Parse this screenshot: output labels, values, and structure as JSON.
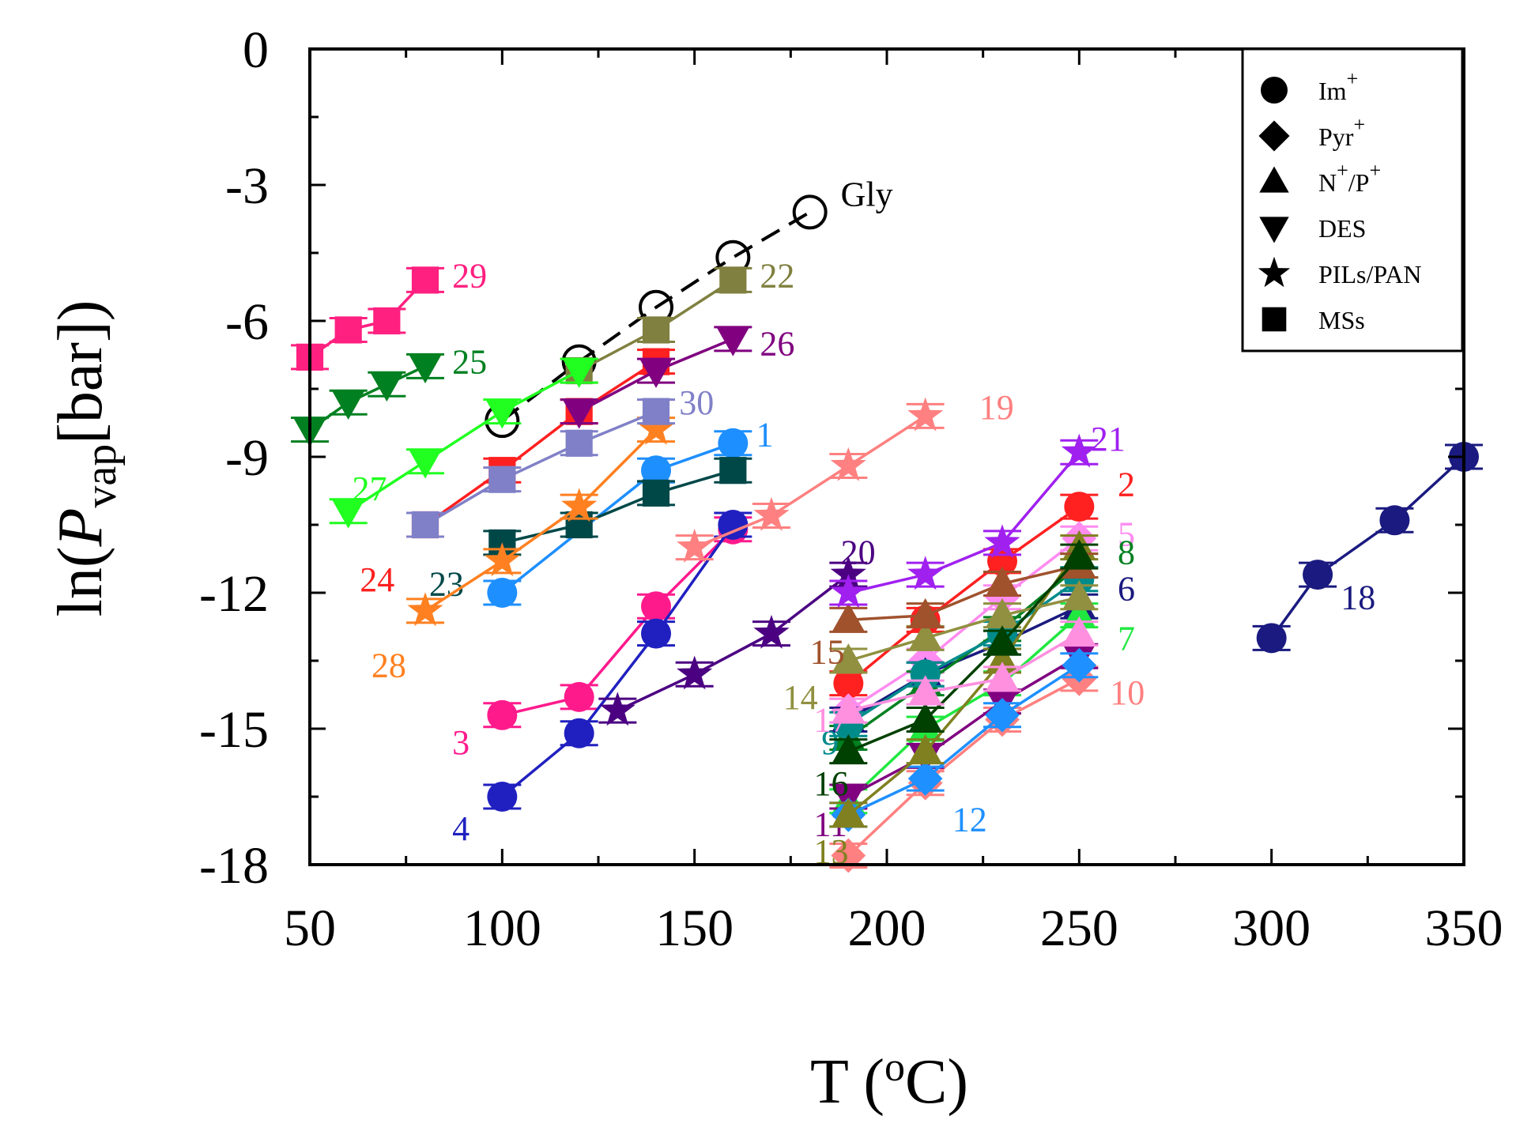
{
  "chart_data": {
    "type": "scatter",
    "title": "",
    "xlabel": "T (oC)",
    "ylabel": "ln(Pvap[bar])",
    "xlabel_parts": {
      "main": "T (",
      "sup": "o",
      "tail": "C)"
    },
    "ylabel_parts": {
      "pre": "ln(",
      "italic": "P",
      "sub": "vap",
      "post": "[bar])"
    },
    "xlim": [
      50,
      350
    ],
    "ylim": [
      -18,
      0
    ],
    "xticks": [
      50,
      100,
      150,
      200,
      250,
      300,
      350
    ],
    "yticks": [
      -18,
      -15,
      -12,
      -9,
      -6,
      -3,
      0
    ],
    "x_tick_labels": [
      "50",
      "100",
      "150",
      "200",
      "250",
      "300",
      "350"
    ],
    "y_tick_labels": [
      "-18",
      "-15",
      "-12",
      "-9",
      "-6",
      "-3",
      "0"
    ],
    "grid": false,
    "legend": {
      "position": "top-right",
      "entries": [
        {
          "marker": "circle",
          "label": "Im+"
        },
        {
          "marker": "diamond",
          "label": "Pyr+"
        },
        {
          "marker": "triangle-up",
          "label": "N+/P+"
        },
        {
          "marker": "triangle-down",
          "label": "DES"
        },
        {
          "marker": "star",
          "label": "PILs/PAN"
        },
        {
          "marker": "square",
          "label": "MSs"
        }
      ]
    },
    "series": [
      {
        "name": "Gly",
        "marker": "open-circle",
        "color": "#000000",
        "dashed": true,
        "x": [
          100,
          120,
          140,
          160,
          180
        ],
        "y": [
          -8.2,
          -6.9,
          -5.7,
          -4.6,
          -3.6
        ],
        "label_x": 188,
        "label_y": -3.2
      },
      {
        "name": "1",
        "marker": "circle",
        "color": "#1E8FFF",
        "x": [
          100,
          140,
          160
        ],
        "y": [
          -12.0,
          -9.3,
          -8.7
        ],
        "label_x": 166,
        "label_y": -8.5
      },
      {
        "name": "2",
        "marker": "circle",
        "color": "#FF2020",
        "x": [
          190,
          210,
          230,
          250
        ],
        "y": [
          -14.0,
          -12.6,
          -11.3,
          -10.1
        ],
        "label_x": 260,
        "label_y": -9.6
      },
      {
        "name": "3",
        "marker": "circle",
        "color": "#FF1A8C",
        "x": [
          100,
          120,
          140,
          160
        ],
        "y": [
          -14.7,
          -14.3,
          -12.3,
          -10.6
        ],
        "label_x": 87,
        "label_y": -15.3
      },
      {
        "name": "4",
        "marker": "circle",
        "color": "#2020C0",
        "x": [
          100,
          120,
          140,
          160
        ],
        "y": [
          -16.5,
          -15.1,
          -12.9,
          -10.5
        ],
        "label_x": 87,
        "label_y": -17.2
      },
      {
        "name": "5",
        "marker": "diamond",
        "color": "#FF8CF0",
        "x": [
          190,
          210,
          230,
          250
        ],
        "y": [
          -14.6,
          -13.5,
          -12.1,
          -10.8
        ],
        "label_x": 260,
        "label_y": -10.7
      },
      {
        "name": "6",
        "marker": "triangle-up",
        "color": "#1A1A80",
        "x": [
          190,
          210,
          230,
          250
        ],
        "y": [
          -14.8,
          -13.8,
          -13.1,
          -12.3
        ],
        "label_x": 260,
        "label_y": -11.9
      },
      {
        "name": "7",
        "marker": "triangle-up",
        "color": "#20E840",
        "x": [
          190,
          210,
          230,
          250
        ],
        "y": [
          -16.6,
          -15.0,
          -14.0,
          -12.5
        ],
        "label_x": 260,
        "label_y": -13.0
      },
      {
        "name": "8",
        "marker": "triangle-up",
        "color": "#008020",
        "x": [
          190,
          210,
          230,
          250
        ],
        "y": [
          -15.2,
          -14.0,
          -12.8,
          -11.4
        ],
        "label_x": 260,
        "label_y": -11.1
      },
      {
        "name": "9",
        "marker": "circle",
        "color": "#008B8B",
        "x": [
          190,
          210,
          230,
          250
        ],
        "y": [
          -14.9,
          -13.8,
          -12.9,
          -11.7
        ],
        "label_x": 183,
        "label_y": -15.3
      },
      {
        "name": "10",
        "marker": "diamond",
        "color": "#FF8080",
        "x": [
          190,
          210,
          230,
          250
        ],
        "y": [
          -17.8,
          -16.2,
          -14.8,
          -13.9
        ],
        "label_x": 258,
        "label_y": -14.2
      },
      {
        "name": "11",
        "marker": "triangle-down",
        "color": "#800080",
        "x": [
          190,
          210,
          230,
          250
        ],
        "y": [
          -16.5,
          -15.6,
          -14.4,
          -13.4
        ],
        "label_x": 181,
        "label_y": -17.1
      },
      {
        "name": "12",
        "marker": "diamond",
        "color": "#1E90FF",
        "x": [
          190,
          210,
          230,
          250
        ],
        "y": [
          -16.9,
          -16.1,
          -14.7,
          -13.6
        ],
        "label_x": 217,
        "label_y": -17.0
      },
      {
        "name": "13",
        "marker": "triangle-up",
        "color": "#808020",
        "x": [
          190,
          210,
          230,
          250
        ],
        "y": [
          -16.9,
          -15.5,
          -13.5,
          -11.0
        ],
        "label_x": 181,
        "label_y": -17.7
      },
      {
        "name": "14",
        "marker": "triangle-up",
        "color": "#909040",
        "x": [
          190,
          210,
          230,
          250
        ],
        "y": [
          -13.5,
          -13.0,
          -12.5,
          -12.1
        ],
        "label_x": 173,
        "label_y": -14.3
      },
      {
        "name": "15",
        "marker": "triangle-up",
        "color": "#A0522D",
        "x": [
          190,
          210,
          230,
          250
        ],
        "y": [
          -12.6,
          -12.5,
          -11.8,
          -11.4
        ],
        "label_x": 180,
        "label_y": -13.3
      },
      {
        "name": "16",
        "marker": "triangle-up",
        "color": "#004000",
        "x": [
          190,
          210,
          230,
          250
        ],
        "y": [
          -15.5,
          -14.8,
          -13.1,
          -11.2
        ],
        "label_x": 181,
        "label_y": -16.2
      },
      {
        "name": "17",
        "marker": "triangle-up",
        "color": "#FF90E0",
        "x": [
          190,
          210,
          230,
          250
        ],
        "y": [
          -14.6,
          -14.2,
          -13.9,
          -12.9
        ],
        "label_x": 181,
        "label_y": -14.8
      },
      {
        "name": "18",
        "marker": "circle",
        "color": "#1A1A80",
        "x": [
          300,
          312,
          332,
          350
        ],
        "y": [
          -13.0,
          -11.6,
          -10.4,
          -9.0
        ],
        "label_x": 318,
        "label_y": -12.1
      },
      {
        "name": "19",
        "marker": "star",
        "color": "#FF8080",
        "x": [
          150,
          170,
          190,
          210
        ],
        "y": [
          -11.0,
          -10.3,
          -9.2,
          -8.1
        ],
        "label_x": 224,
        "label_y": -7.9
      },
      {
        "name": "20",
        "marker": "star",
        "color": "#4B0082",
        "x": [
          130,
          150,
          170,
          190
        ],
        "y": [
          -14.6,
          -13.8,
          -12.9,
          -11.6
        ],
        "label_x": 188,
        "label_y": -11.1
      },
      {
        "name": "21",
        "marker": "star",
        "color": "#A020F0",
        "x": [
          190,
          210,
          230,
          250
        ],
        "y": [
          -12.0,
          -11.6,
          -10.9,
          -8.9
        ],
        "label_x": 253,
        "label_y": -8.6
      },
      {
        "name": "22",
        "marker": "square",
        "color": "#808040",
        "x": [
          120,
          140,
          160
        ],
        "y": [
          -7.1,
          -6.2,
          -5.1
        ],
        "label_x": 167,
        "label_y": -5.0
      },
      {
        "name": "23",
        "marker": "square",
        "color": "#004848",
        "x": [
          100,
          120,
          140,
          160
        ],
        "y": [
          -10.9,
          -10.5,
          -9.8,
          -9.3
        ],
        "label_x": 81,
        "label_y": -11.8
      },
      {
        "name": "24",
        "marker": "square",
        "color": "#FF2020",
        "x": [
          80,
          100,
          120,
          140
        ],
        "y": [
          -10.5,
          -9.3,
          -8.0,
          -6.9
        ],
        "label_x": 63,
        "label_y": -11.7
      },
      {
        "name": "25",
        "marker": "triangle-down",
        "color": "#008020",
        "x": [
          50,
          60,
          70,
          80
        ],
        "y": [
          -8.4,
          -7.8,
          -7.4,
          -7.0
        ],
        "label_x": 87,
        "label_y": -6.9
      },
      {
        "name": "26",
        "marker": "triangle-down",
        "color": "#800080",
        "x": [
          120,
          140,
          160
        ],
        "y": [
          -8.0,
          -7.1,
          -6.4
        ],
        "label_x": 167,
        "label_y": -6.5
      },
      {
        "name": "27",
        "marker": "triangle-down",
        "color": "#20FF20",
        "x": [
          60,
          80,
          100,
          120
        ],
        "y": [
          -10.2,
          -9.1,
          -8.0,
          -7.1
        ],
        "label_x": 61,
        "label_y": -9.7
      },
      {
        "name": "28",
        "marker": "star",
        "color": "#FF8020",
        "x": [
          80,
          100,
          120,
          140
        ],
        "y": [
          -12.4,
          -11.3,
          -10.1,
          -8.4
        ],
        "label_x": 66,
        "label_y": -13.6
      },
      {
        "name": "29",
        "marker": "square",
        "color": "#FF2080",
        "x": [
          50,
          60,
          70,
          80
        ],
        "y": [
          -6.8,
          -6.2,
          -6.0,
          -5.1
        ],
        "label_x": 87,
        "label_y": -5.0
      },
      {
        "name": "30",
        "marker": "square",
        "color": "#8080C8",
        "x": [
          80,
          100,
          120,
          140
        ],
        "y": [
          -10.5,
          -9.5,
          -8.7,
          -8.0
        ],
        "label_x": 146,
        "label_y": -7.8
      }
    ]
  }
}
